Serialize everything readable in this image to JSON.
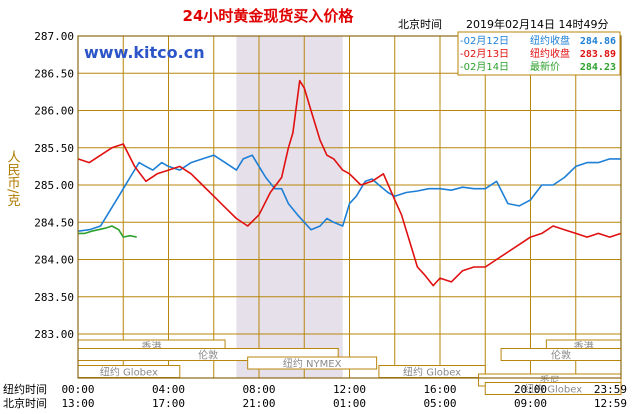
{
  "chart_data": {
    "type": "line",
    "title": "24小时黄金现货买入价格",
    "time_label": "北京时间",
    "timestamp": "2019年02月14日 14时49分",
    "watermark": "www.kitco.cn",
    "ylabel": "人民币/克",
    "ylim": [
      283.0,
      287.0
    ],
    "yticks": [
      "287.00",
      "286.50",
      "286.00",
      "285.50",
      "285.00",
      "284.50",
      "284.00",
      "283.50",
      "283.00"
    ],
    "x_range_hours": [
      0,
      24
    ],
    "xaxis_rows": [
      {
        "label": "纽约时间",
        "ticks": [
          "00:00",
          "04:00",
          "08:00",
          "12:00",
          "16:00",
          "20:00",
          "23:59"
        ]
      },
      {
        "label": "北京时间",
        "ticks": [
          "13:00",
          "17:00",
          "21:00",
          "01:00",
          "05:00",
          "09:00",
          "12:59"
        ]
      }
    ],
    "shaded_period_hours": [
      7.0,
      11.7
    ],
    "market_bars": [
      {
        "name": "香港",
        "segments": [
          [
            0,
            6.5
          ],
          [
            20.7,
            24
          ]
        ]
      },
      {
        "name": "伦敦",
        "segments": [
          [
            0,
            11.5
          ],
          [
            18.7,
            24
          ]
        ]
      },
      {
        "name": "纽约 NYMEX",
        "segments": [
          [
            7.5,
            13.2
          ]
        ]
      },
      {
        "name": "纽约 Globex",
        "segments": [
          [
            0,
            4.5
          ],
          [
            13.3,
            18
          ]
        ]
      },
      {
        "name": "悉尼",
        "segments": [
          [
            17.7,
            24
          ]
        ]
      },
      {
        "name": "纽约 Globex",
        "segments": [
          [
            18,
            24
          ]
        ]
      }
    ],
    "legend": [
      {
        "date": "02月12日",
        "label": "纽约收盘",
        "value": "284.86",
        "color": "#1e7fd6"
      },
      {
        "date": "02月13日",
        "label": "纽约收盘",
        "value": "283.89",
        "color": "#e01010"
      },
      {
        "date": "02月14日",
        "label": "最新价",
        "value": "284.23",
        "color": "#2ea02e"
      }
    ],
    "series": [
      {
        "name": "02月12日",
        "color": "#1e7fd6",
        "x": [
          0,
          0.5,
          1,
          1.3,
          1.7,
          2,
          2.3,
          2.7,
          3,
          3.3,
          3.7,
          4,
          4.5,
          5,
          5.5,
          6,
          6.5,
          7,
          7.3,
          7.7,
          8,
          8.3,
          8.7,
          9,
          9.3,
          9.7,
          10,
          10.3,
          10.7,
          11,
          11.3,
          11.7,
          12,
          12.3,
          12.7,
          13,
          13.3,
          13.7,
          14,
          14.5,
          15,
          15.5,
          16,
          16.5,
          17,
          17.5,
          18,
          18.5,
          19,
          19.5,
          20,
          20.5,
          21,
          21.5,
          22,
          22.5,
          23,
          23.5,
          24
        ],
        "values": [
          284.38,
          284.4,
          284.45,
          284.6,
          284.8,
          284.95,
          285.1,
          285.3,
          285.25,
          285.2,
          285.3,
          285.25,
          285.2,
          285.3,
          285.35,
          285.4,
          285.3,
          285.2,
          285.35,
          285.4,
          285.25,
          285.1,
          284.95,
          284.95,
          284.75,
          284.6,
          284.5,
          284.4,
          284.45,
          284.55,
          284.5,
          284.45,
          284.75,
          284.85,
          285.05,
          285.08,
          285.0,
          284.9,
          284.85,
          284.9,
          284.92,
          284.95,
          284.95,
          284.93,
          284.97,
          284.95,
          284.95,
          285.05,
          284.75,
          284.72,
          284.8,
          285.0,
          285.0,
          285.1,
          285.25,
          285.3,
          285.3,
          285.35,
          285.35
        ]
      },
      {
        "name": "02月13日",
        "color": "#e01010",
        "x": [
          0,
          0.5,
          1,
          1.5,
          2,
          2.5,
          3,
          3.5,
          4,
          4.5,
          5,
          5.5,
          6,
          6.5,
          7,
          7.5,
          8,
          8.5,
          9,
          9.3,
          9.5,
          9.8,
          10,
          10.3,
          10.7,
          11,
          11.3,
          11.7,
          12,
          12.5,
          13,
          13.5,
          14,
          14.3,
          14.7,
          15,
          15.3,
          15.7,
          16,
          16.5,
          17,
          17.5,
          18,
          18.5,
          19,
          19.5,
          20,
          20.5,
          21,
          21.5,
          22,
          22.5,
          23,
          23.5,
          24
        ],
        "values": [
          285.35,
          285.3,
          285.4,
          285.5,
          285.55,
          285.25,
          285.05,
          285.15,
          285.2,
          285.25,
          285.15,
          285.0,
          284.85,
          284.7,
          284.55,
          284.45,
          284.6,
          284.9,
          285.1,
          285.5,
          285.7,
          286.4,
          286.3,
          286.0,
          285.6,
          285.4,
          285.35,
          285.2,
          285.15,
          285.0,
          285.05,
          285.15,
          284.8,
          284.6,
          284.2,
          283.9,
          283.8,
          283.65,
          283.75,
          283.7,
          283.85,
          283.9,
          283.9,
          284.0,
          284.1,
          284.2,
          284.3,
          284.35,
          284.45,
          284.4,
          284.35,
          284.3,
          284.35,
          284.3,
          284.35
        ]
      },
      {
        "name": "02月14日",
        "color": "#2ea02e",
        "x": [
          0,
          0.3,
          0.6,
          0.9,
          1.2,
          1.5,
          1.8,
          2.0,
          2.3,
          2.6
        ],
        "values": [
          284.35,
          284.35,
          284.38,
          284.4,
          284.42,
          284.45,
          284.4,
          284.3,
          284.32,
          284.3
        ]
      }
    ]
  }
}
